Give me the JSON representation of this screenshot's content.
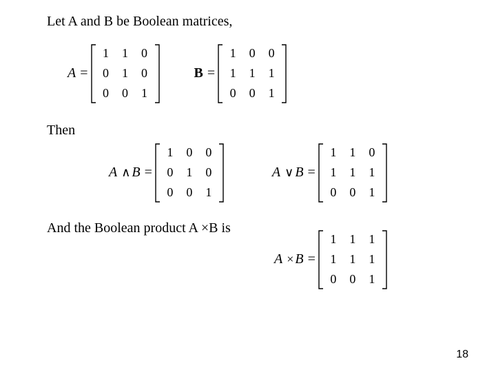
{
  "text": {
    "intro": "Let A and B be Boolean matrices,",
    "then": "Then",
    "and_product": "And the Boolean product A ×B is",
    "page": "18"
  },
  "labels": {
    "A": "A",
    "B": "B",
    "eq": "="
  },
  "ops": {
    "and": "∧",
    "or": "∨",
    "times": "×"
  },
  "matrices": {
    "A": [
      [
        "1",
        "1",
        "0"
      ],
      [
        "0",
        "1",
        "0"
      ],
      [
        "0",
        "0",
        "1"
      ]
    ],
    "B": [
      [
        "1",
        "0",
        "0"
      ],
      [
        "1",
        "1",
        "1"
      ],
      [
        "0",
        "0",
        "1"
      ]
    ],
    "and": [
      [
        "1",
        "0",
        "0"
      ],
      [
        "0",
        "1",
        "0"
      ],
      [
        "0",
        "0",
        "1"
      ]
    ],
    "or": [
      [
        "1",
        "1",
        "0"
      ],
      [
        "1",
        "1",
        "1"
      ],
      [
        "0",
        "0",
        "1"
      ]
    ],
    "prod": [
      [
        "1",
        "1",
        "1"
      ],
      [
        "1",
        "1",
        "1"
      ],
      [
        "0",
        "0",
        "1"
      ]
    ]
  }
}
